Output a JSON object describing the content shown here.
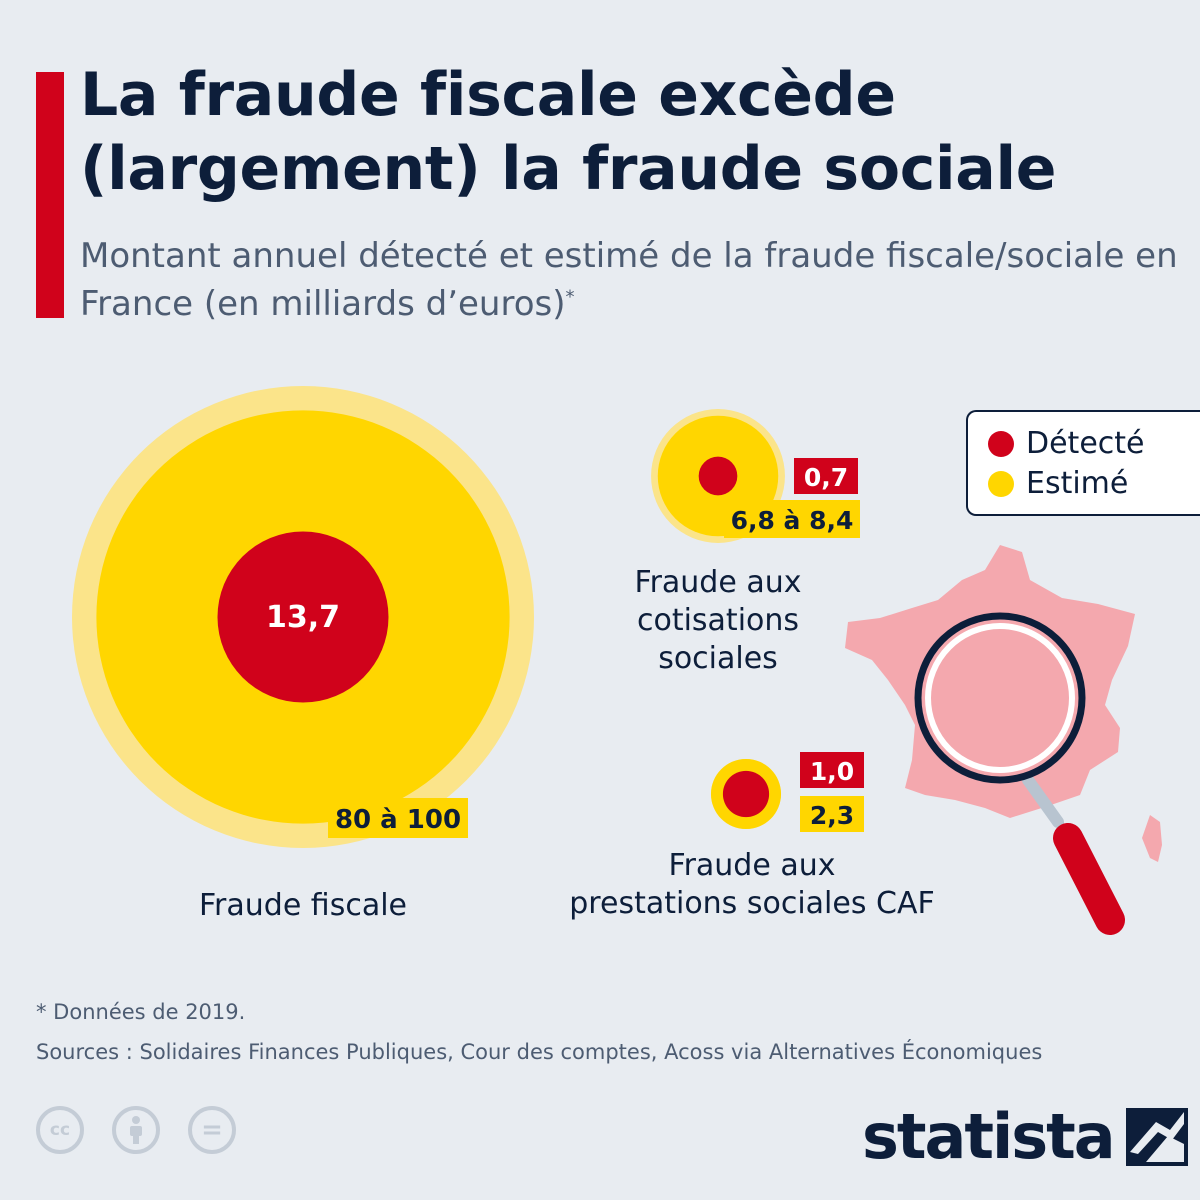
{
  "header": {
    "title": "La fraude fiscale excède (largement) la fraude sociale",
    "subtitle": "Montant annuel détecté et estimé de la fraude fiscale/sociale en France (en milliards d’euros)",
    "subtitle_mark": "*"
  },
  "legend": {
    "detected_label": "Détecté",
    "estimated_label": "Estimé"
  },
  "colors": {
    "detected": "#d0021b",
    "estimated": "#ffd600",
    "estimated_halo": "#fbe48a",
    "map": "#f4a8ae",
    "text": "#0d1e3a",
    "background": "#e8ecf1"
  },
  "chart_data": {
    "type": "bubble",
    "unit": "milliards d’euros",
    "items": [
      {
        "name": "Fraude fiscale",
        "detected": 13.7,
        "detected_label": "13,7",
        "estimated_range": [
          80,
          100
        ],
        "estimated_label": "80 à 100"
      },
      {
        "name": "Fraude aux cotisations sociales",
        "detected": 0.7,
        "detected_label": "0,7",
        "estimated_range": [
          6.8,
          8.4
        ],
        "estimated_label": "6,8 à 8,4"
      },
      {
        "name": "Fraude aux prestations sociales CAF",
        "detected": 1.0,
        "detected_label": "1,0",
        "estimated_range": [
          2.3,
          2.3
        ],
        "estimated_label": "2,3"
      }
    ]
  },
  "labels": {
    "fiscale": "Fraude fiscale",
    "cotisations": [
      "Fraude aux",
      "cotisations",
      "sociales"
    ],
    "prestations": [
      "Fraude aux",
      "prestations sociales CAF"
    ]
  },
  "footer": {
    "footnote": "* Données de 2019.",
    "sources": "Sources : Solidaires Finances Publiques, Cour des comptes, Acoss via Alternatives Économiques",
    "license_icons": [
      "cc-icon",
      "attribution-icon",
      "no-derivatives-icon"
    ],
    "license_glyphs": [
      "cc",
      "",
      "="
    ],
    "brand": "statista"
  }
}
